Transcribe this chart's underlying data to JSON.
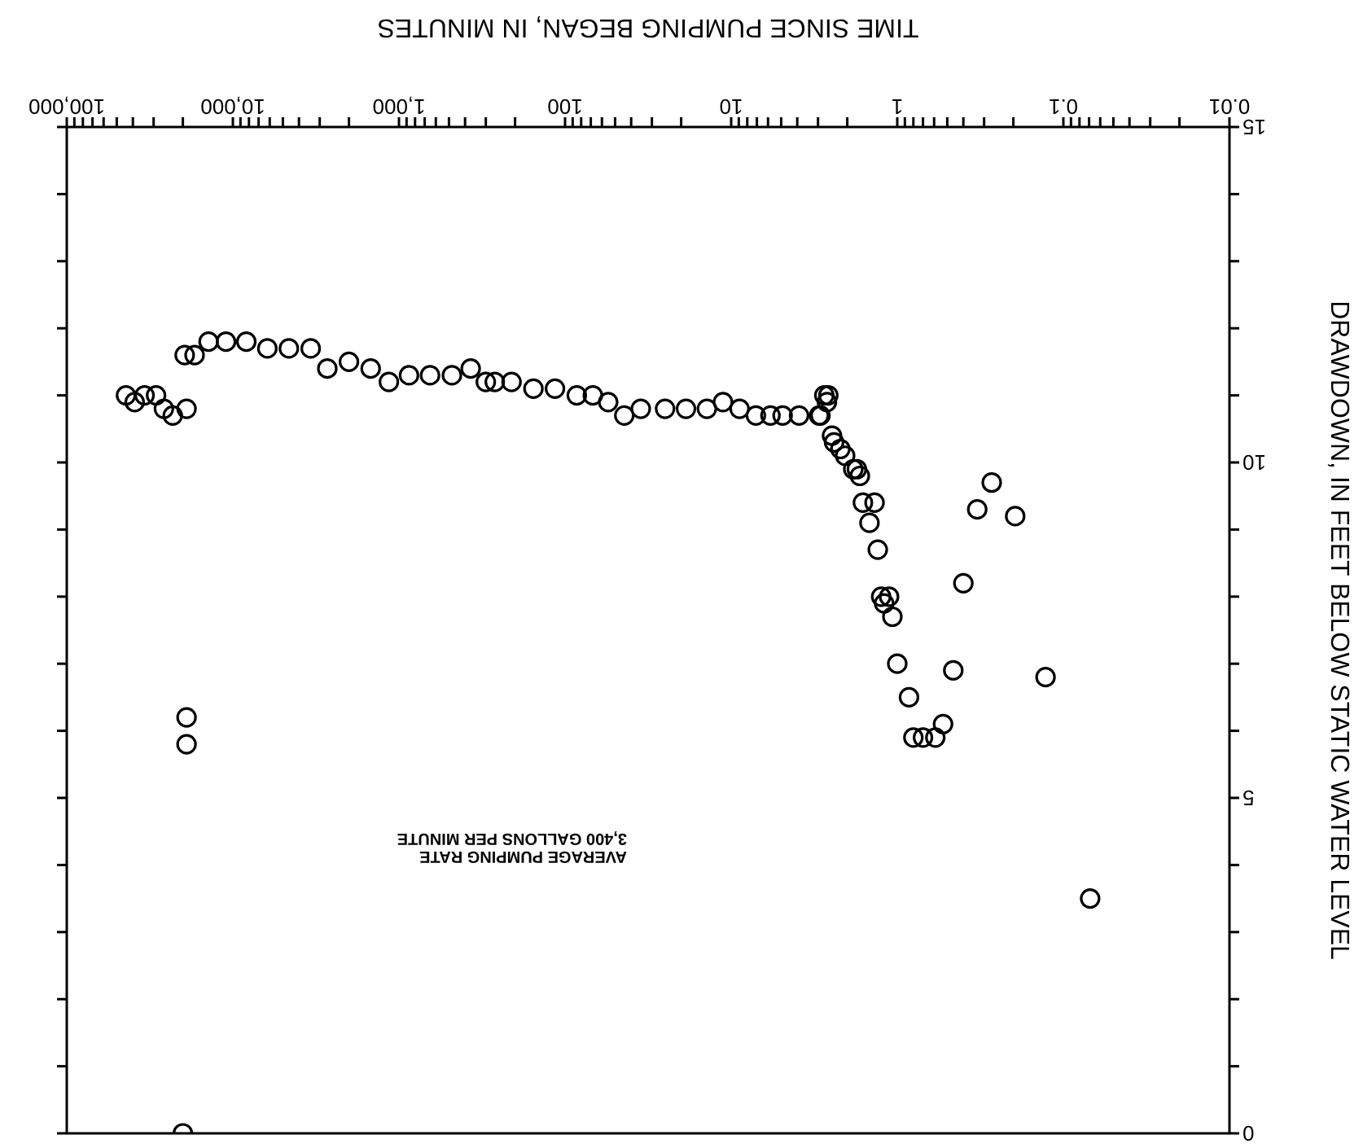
{
  "chart_data": {
    "type": "scatter",
    "xlabel": "TIME SINCE PUMPING BEGAN, IN MINUTES",
    "ylabel": "DRAWDOWN, IN FEET BELOW STATIC WATER LEVEL",
    "annotations": [
      "AVERAGE PUMPING RATE 3,400 GALLONS PER MINUTE"
    ],
    "log": "x",
    "marker": "circle",
    "xlim": [
      100000,
      0.01
    ],
    "ylim": [
      0,
      15
    ],
    "xticks": [
      {
        "value": 0.01,
        "label": "0.01"
      },
      {
        "value": 0.02,
        "label": null
      },
      {
        "value": 0.03,
        "label": null
      },
      {
        "value": 0.04,
        "label": null
      },
      {
        "value": 0.05,
        "label": null
      },
      {
        "value": 0.06,
        "label": null
      },
      {
        "value": 0.07,
        "label": null
      },
      {
        "value": 0.08,
        "label": null
      },
      {
        "value": 0.09,
        "label": null
      },
      {
        "value": 0.1,
        "label": "0.1"
      },
      {
        "value": 0.2,
        "label": null
      },
      {
        "value": 0.3,
        "label": null
      },
      {
        "value": 0.4,
        "label": null
      },
      {
        "value": 0.5,
        "label": null
      },
      {
        "value": 0.6,
        "label": null
      },
      {
        "value": 0.7,
        "label": null
      },
      {
        "value": 0.8,
        "label": null
      },
      {
        "value": 0.9,
        "label": null
      },
      {
        "value": 1,
        "label": "1"
      },
      {
        "value": 2,
        "label": null
      },
      {
        "value": 3,
        "label": null
      },
      {
        "value": 4,
        "label": null
      },
      {
        "value": 5,
        "label": null
      },
      {
        "value": 6,
        "label": null
      },
      {
        "value": 7,
        "label": null
      },
      {
        "value": 8,
        "label": null
      },
      {
        "value": 9,
        "label": null
      },
      {
        "value": 10,
        "label": "10"
      },
      {
        "value": 20,
        "label": null
      },
      {
        "value": 30,
        "label": null
      },
      {
        "value": 40,
        "label": null
      },
      {
        "value": 50,
        "label": null
      },
      {
        "value": 60,
        "label": null
      },
      {
        "value": 70,
        "label": null
      },
      {
        "value": 80,
        "label": null
      },
      {
        "value": 90,
        "label": null
      },
      {
        "value": 100,
        "label": "100"
      },
      {
        "value": 200,
        "label": null
      },
      {
        "value": 300,
        "label": null
      },
      {
        "value": 400,
        "label": null
      },
      {
        "value": 500,
        "label": null
      },
      {
        "value": 600,
        "label": null
      },
      {
        "value": 700,
        "label": null
      },
      {
        "value": 800,
        "label": null
      },
      {
        "value": 900,
        "label": null
      },
      {
        "value": 1000,
        "label": "1,000"
      },
      {
        "value": 2000,
        "label": null
      },
      {
        "value": 3000,
        "label": null
      },
      {
        "value": 4000,
        "label": null
      },
      {
        "value": 5000,
        "label": null
      },
      {
        "value": 6000,
        "label": null
      },
      {
        "value": 7000,
        "label": null
      },
      {
        "value": 8000,
        "label": null
      },
      {
        "value": 9000,
        "label": null
      },
      {
        "value": 10000,
        "label": "10,000"
      },
      {
        "value": 20000,
        "label": null
      },
      {
        "value": 30000,
        "label": null
      },
      {
        "value": 40000,
        "label": null
      },
      {
        "value": 50000,
        "label": null
      },
      {
        "value": 60000,
        "label": null
      },
      {
        "value": 70000,
        "label": null
      },
      {
        "value": 80000,
        "label": null
      },
      {
        "value": 90000,
        "label": null
      },
      {
        "value": 100000,
        "label": "100,000"
      }
    ],
    "yticks": [
      0,
      {
        "value": 1,
        "label": null
      },
      {
        "value": 2,
        "label": null
      },
      {
        "value": 3,
        "label": null
      },
      {
        "value": 4,
        "label": null
      },
      5,
      {
        "value": 6,
        "label": null
      },
      {
        "value": 7,
        "label": null
      },
      {
        "value": 8,
        "label": null
      },
      {
        "value": 9,
        "label": null
      },
      10,
      {
        "value": 11,
        "label": null
      },
      {
        "value": 12,
        "label": null
      },
      {
        "value": 13,
        "label": null
      },
      {
        "value": 14,
        "label": null
      },
      15
    ],
    "series": [
      {
        "color": "#000000",
        "x": [
          0.069,
          0.128,
          0.195,
          0.27,
          0.33,
          0.4,
          0.46,
          0.53,
          0.59,
          0.7,
          0.8,
          0.85,
          1.0,
          1.07,
          1.12,
          1.2,
          1.25,
          1.31,
          1.37,
          1.47,
          1.61,
          1.68,
          1.75,
          1.84,
          2.06,
          2.2,
          2.4,
          2.47,
          2.6,
          2.65,
          2.75,
          2.9,
          2.96,
          3.9,
          4.9,
          5.8,
          7.1,
          8.9,
          11.2,
          14,
          18.7,
          25,
          35,
          44,
          55,
          68,
          85,
          115,
          155,
          210,
          265,
          300,
          370,
          480,
          650,
          870,
          1150,
          1480,
          2000,
          2700,
          3400,
          4600,
          6200,
          8300,
          11000,
          14000,
          17000,
          19000,
          19000,
          19000,
          19500,
          20000,
          23000,
          26000,
          29000,
          34000,
          39000,
          44000
        ],
        "values": [
          3.5,
          6.8,
          9.2,
          9.7,
          9.3,
          8.2,
          6.9,
          6.1,
          5.9,
          5.9,
          5.9,
          6.5,
          7.0,
          7.7,
          8.0,
          7.9,
          8.0,
          8.7,
          9.4,
          9.1,
          9.4,
          9.8,
          9.9,
          9.9,
          10.1,
          10.2,
          10.3,
          10.4,
          11.0,
          10.9,
          11.0,
          10.7,
          10.7,
          10.7,
          10.7,
          10.7,
          10.7,
          10.8,
          10.9,
          10.8,
          10.8,
          10.8,
          10.8,
          10.7,
          10.9,
          11.0,
          11.0,
          11.1,
          11.1,
          11.2,
          11.2,
          11.2,
          11.4,
          11.3,
          11.3,
          11.3,
          11.2,
          11.4,
          11.5,
          11.4,
          11.7,
          11.7,
          11.7,
          11.8,
          11.8,
          11.8,
          11.6,
          6.2,
          5.8,
          10.8,
          11.6,
          0,
          10.7,
          10.8,
          11.0,
          11.0,
          10.9,
          11.0
        ]
      }
    ]
  }
}
